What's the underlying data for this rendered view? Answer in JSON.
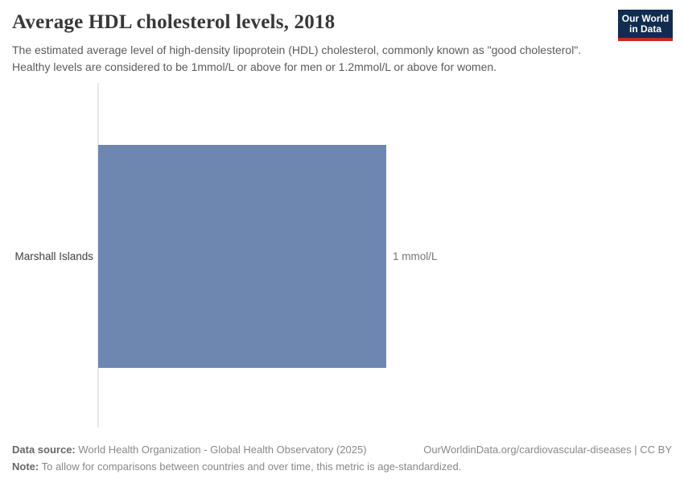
{
  "header": {
    "title": "Average HDL cholesterol levels, 2018",
    "subtitle": "The estimated average level of high-density lipoprotein (HDL) cholesterol, commonly known as \"good cholesterol\". Healthy levels are considered to be 1mmol/L or above for men or 1.2mmol/L or above for women."
  },
  "logo": {
    "line1": "Our World",
    "line2": "in Data",
    "bg_color": "#102d50",
    "accent_color": "#c82823"
  },
  "chart_data": {
    "type": "bar",
    "orientation": "horizontal",
    "categories": [
      "Marshall Islands"
    ],
    "values": [
      1
    ],
    "unit": "mmol/L",
    "value_labels": [
      "1 mmol/L"
    ],
    "title": "Average HDL cholesterol levels, 2018",
    "year": "2018",
    "xlabel": "",
    "ylabel": "",
    "xlim": [
      0,
      1.2
    ],
    "grid": false,
    "legend": "none",
    "bar_color": "#6e87b1"
  },
  "footer": {
    "datasource_label": "Data source:",
    "datasource": "World Health Organization - Global Health Observatory (2025)",
    "link": "OurWorldinData.org/cardiovascular-diseases | CC BY",
    "note_label": "Note:",
    "note": "To allow for comparisons between countries and over time, this metric is age-standardized."
  }
}
